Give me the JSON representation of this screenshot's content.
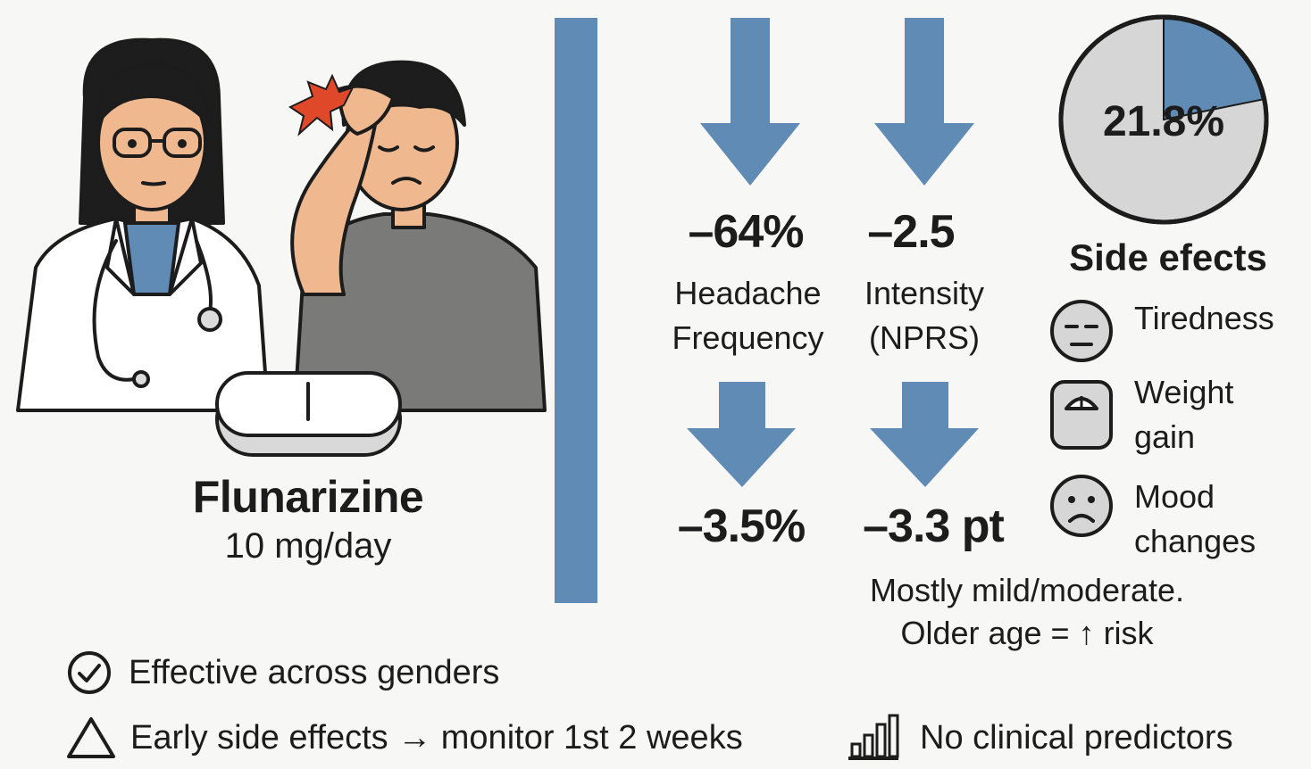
{
  "drug": {
    "name": "Flunarizine",
    "dose": "10 mg/day"
  },
  "stats_top": [
    {
      "value": "–64%",
      "label_line1": "Headache",
      "label_line2": "Frequency"
    },
    {
      "value": "–2.5",
      "label_line1": "Intensity",
      "label_line2": "(NPRS)"
    }
  ],
  "stats_bottom": [
    {
      "value": "–3.5%"
    },
    {
      "value": "–3.3 pt"
    }
  ],
  "side_effects": {
    "percent_label": "21.8%",
    "percent_value": 21.8,
    "title": "Side efects",
    "items": [
      {
        "icon": "tired-face-icon",
        "line1": "Tiredness",
        "line2": ""
      },
      {
        "icon": "scale-icon",
        "line1": "Weight",
        "line2": "gain"
      },
      {
        "icon": "sad-face-icon",
        "line1": "Mood",
        "line2": "changes"
      }
    ],
    "note_line1": "Mostly mild/moderate.",
    "note_line2": "Older age = ↑ risk"
  },
  "bottom": {
    "item1": "Effective across genders",
    "item2": "Early side effects → monitor 1st 2 weeks",
    "item3": "No clinical predictors"
  },
  "colors": {
    "accent_blue": "#5f8bb5",
    "pie_gray": "#d6d6d6",
    "arrow_blue": "#5f8bb5",
    "headache_burst": "#e0482a"
  }
}
